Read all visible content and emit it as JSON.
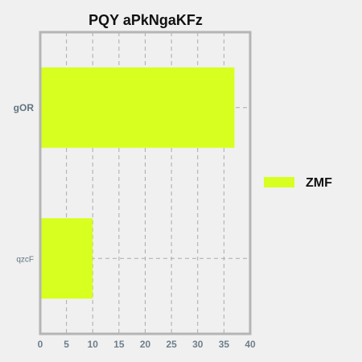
{
  "chart_data": {
    "type": "bar",
    "orientation": "horizontal",
    "title": "PQY aPkNgaKFz",
    "xlabel": "",
    "ylabel": "",
    "categories": [
      "gOR",
      "qzcF"
    ],
    "series": [
      {
        "name": "ZMF",
        "values": [
          37,
          10
        ],
        "color": "#d7ff1f"
      }
    ],
    "xlim": [
      0,
      40
    ],
    "xticks": [
      0,
      5,
      10,
      15,
      20,
      25,
      30,
      35,
      40
    ],
    "grid": true,
    "legend_position": "right"
  }
}
